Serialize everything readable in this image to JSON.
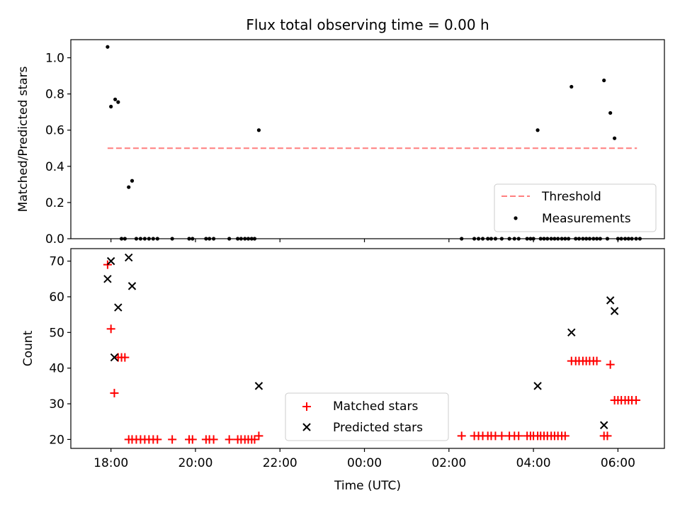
{
  "chart_data": [
    {
      "type": "scatter",
      "title": "Flux total observing time = 0.00 h",
      "xlabel": "",
      "ylabel": "Matched/Predicted stars",
      "ylim": [
        0,
        1.1
      ],
      "xlim": [
        17.05,
        31.1
      ],
      "yticks": [
        0.0,
        0.2,
        0.4,
        0.6,
        0.8,
        1.0
      ],
      "ytick_labels": [
        "0.0",
        "0.2",
        "0.4",
        "0.6",
        "0.8",
        "1.0"
      ],
      "legend_position": "lower-right",
      "colors": {
        "threshold": "#ff7f7f",
        "measurements": "#000000"
      },
      "threshold": {
        "name": "Threshold",
        "y": 0.5,
        "x_range": [
          17.92,
          30.45
        ]
      },
      "series": [
        {
          "name": "Measurements",
          "x": [
            17.92,
            18.0,
            18.1,
            18.17,
            18.42,
            18.5,
            21.5,
            28.1,
            28.9,
            29.67,
            29.82,
            29.92,
            18.25,
            18.33,
            18.6,
            18.7,
            18.8,
            18.9,
            19.0,
            19.1,
            19.45,
            19.85,
            19.93,
            20.25,
            20.33,
            20.43,
            20.8,
            21.0,
            21.08,
            21.17,
            21.25,
            21.33,
            21.4,
            26.3,
            26.6,
            26.7,
            26.8,
            26.92,
            27.0,
            27.1,
            27.25,
            27.43,
            27.55,
            27.65,
            27.85,
            27.93,
            28.0,
            28.17,
            28.25,
            28.33,
            28.42,
            28.5,
            28.58,
            28.67,
            28.75,
            28.83,
            29.0,
            29.08,
            29.17,
            29.25,
            29.33,
            29.42,
            29.5,
            29.58,
            29.75,
            30.0,
            30.08,
            30.17,
            30.25,
            30.33,
            30.43,
            30.52
          ],
          "y": [
            1.06,
            0.73,
            0.77,
            0.755,
            0.285,
            0.32,
            0.6,
            0.6,
            0.84,
            0.875,
            0.695,
            0.555,
            0,
            0,
            0,
            0,
            0,
            0,
            0,
            0,
            0,
            0,
            0,
            0,
            0,
            0,
            0,
            0,
            0,
            0,
            0,
            0,
            0,
            0,
            0,
            0,
            0,
            0,
            0,
            0,
            0,
            0,
            0,
            0,
            0,
            0,
            0,
            0,
            0,
            0,
            0,
            0,
            0,
            0,
            0,
            0,
            0,
            0,
            0,
            0,
            0,
            0,
            0,
            0,
            0,
            0,
            0,
            0,
            0,
            0,
            0,
            0
          ]
        }
      ]
    },
    {
      "type": "scatter",
      "title": "",
      "xlabel": "Time (UTC)",
      "ylabel": "Count",
      "ylim": [
        17.5,
        73.5
      ],
      "xlim": [
        17.05,
        31.1
      ],
      "yticks": [
        20,
        30,
        40,
        50,
        60,
        70
      ],
      "ytick_labels": [
        "20",
        "30",
        "40",
        "50",
        "60",
        "70"
      ],
      "xticks": [
        18,
        20,
        22,
        24,
        26,
        28,
        30
      ],
      "xtick_labels": [
        "18:00",
        "20:00",
        "22:00",
        "00:00",
        "02:00",
        "04:00",
        "06:00"
      ],
      "legend_position": "lower-center",
      "colors": {
        "matched": "#ff0000",
        "predicted": "#000000"
      },
      "series": [
        {
          "name": "Matched stars",
          "x": [
            17.92,
            18.0,
            18.08,
            18.17,
            18.25,
            18.33,
            18.42,
            18.5,
            18.6,
            18.7,
            18.8,
            18.9,
            19.0,
            19.1,
            19.45,
            19.85,
            19.93,
            20.25,
            20.33,
            20.43,
            20.8,
            21.0,
            21.08,
            21.17,
            21.25,
            21.33,
            21.4,
            21.5,
            26.3,
            26.6,
            26.7,
            26.8,
            26.92,
            27.0,
            27.1,
            27.25,
            27.43,
            27.55,
            27.65,
            27.85,
            27.93,
            28.0,
            28.1,
            28.17,
            28.25,
            28.33,
            28.42,
            28.5,
            28.58,
            28.67,
            28.75,
            28.9,
            29.0,
            29.08,
            29.17,
            29.25,
            29.33,
            29.42,
            29.5,
            29.67,
            29.75,
            29.82,
            29.92,
            30.0,
            30.08,
            30.17,
            30.25,
            30.33,
            30.43
          ],
          "y": [
            69,
            51,
            33,
            43,
            43,
            43,
            20,
            20,
            20,
            20,
            20,
            20,
            20,
            20,
            20,
            20,
            20,
            20,
            20,
            20,
            20,
            20,
            20,
            20,
            20,
            20,
            20,
            21,
            21,
            21,
            21,
            21,
            21,
            21,
            21,
            21,
            21,
            21,
            21,
            21,
            21,
            21,
            21,
            21,
            21,
            21,
            21,
            21,
            21,
            21,
            21,
            42,
            42,
            42,
            42,
            42,
            42,
            42,
            42,
            21,
            21,
            41,
            31,
            31,
            31,
            31,
            31,
            31,
            31
          ]
        },
        {
          "name": "Predicted stars",
          "x": [
            17.92,
            18.0,
            18.08,
            18.17,
            18.42,
            18.5,
            21.5,
            28.1,
            28.9,
            29.67,
            29.82,
            29.92
          ],
          "y": [
            65,
            70,
            43,
            57,
            71,
            63,
            35,
            35,
            50,
            24,
            59,
            56
          ]
        }
      ]
    }
  ]
}
